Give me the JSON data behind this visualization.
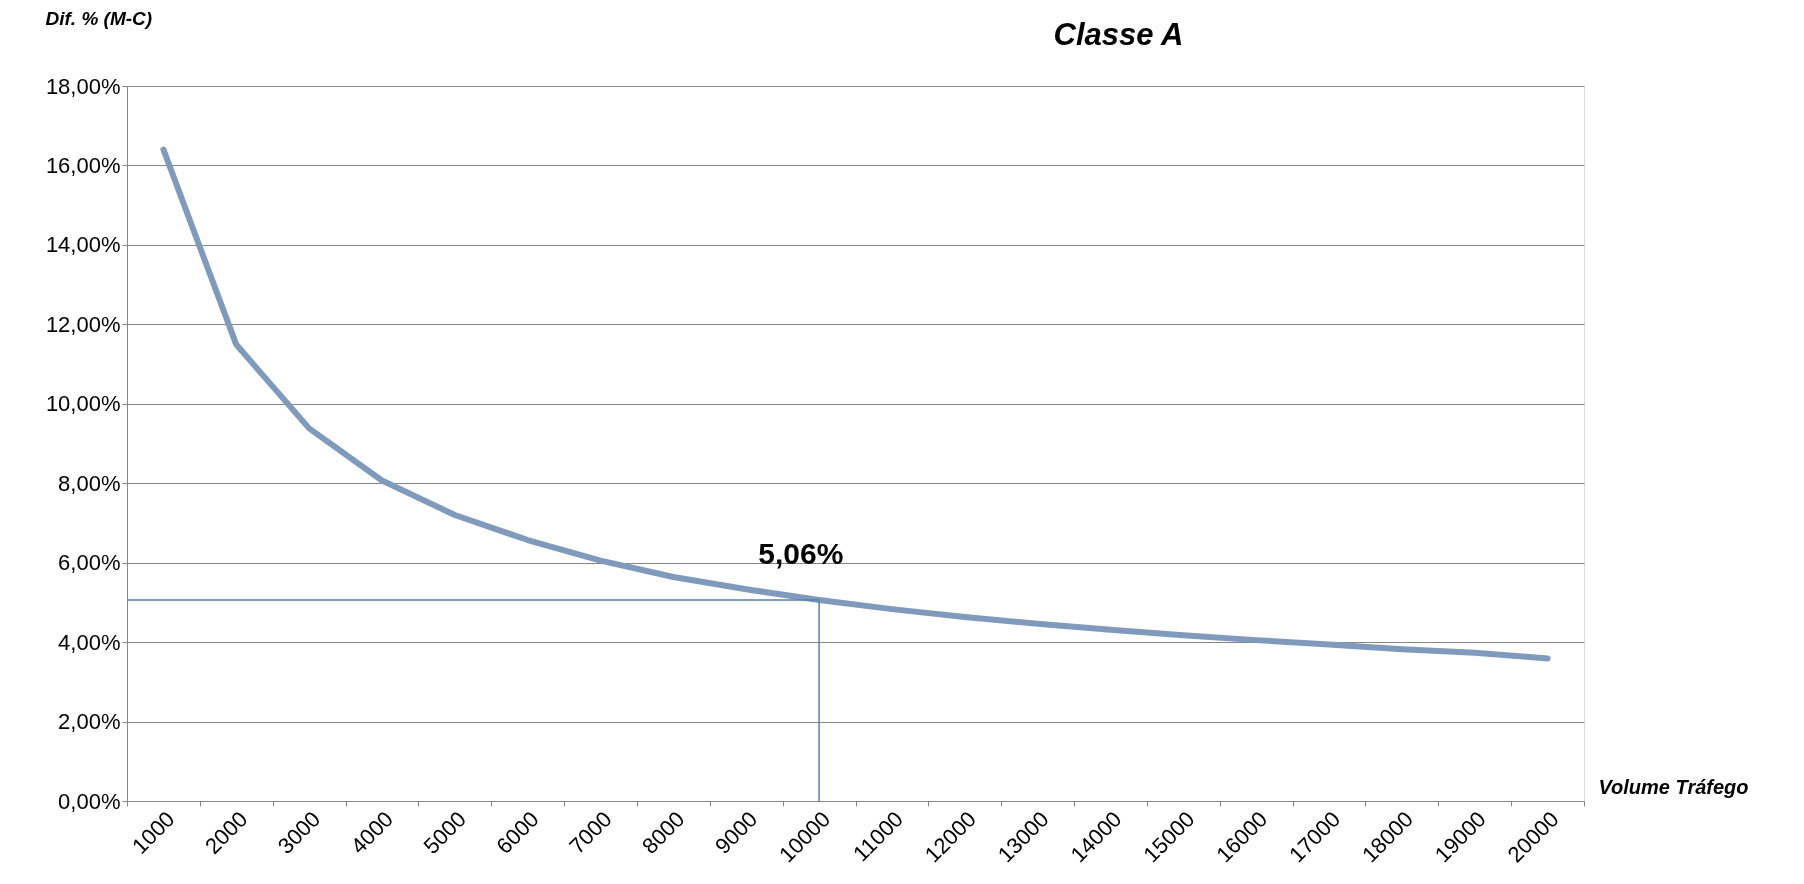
{
  "chart_data": {
    "type": "line",
    "title": "Classe A",
    "xlabel": "Volume Tráfego",
    "ylabel": "Dif. %  (M-C)",
    "categories": [
      "1000",
      "2000",
      "3000",
      "4000",
      "5000",
      "6000",
      "7000",
      "8000",
      "9000",
      "10000",
      "11000",
      "12000",
      "13000",
      "14000",
      "15000",
      "16000",
      "17000",
      "18000",
      "19000",
      "20000"
    ],
    "series": [
      {
        "color": "#7f9aba",
        "values": [
          16.4,
          11.49,
          9.38,
          8.07,
          7.2,
          6.57,
          6.05,
          5.64,
          5.33,
          5.06,
          4.83,
          4.63,
          4.46,
          4.31,
          4.17,
          4.05,
          3.94,
          3.82,
          3.73,
          3.59
        ]
      }
    ],
    "ylim": [
      0,
      18
    ],
    "yticks": [
      {
        "value": 0,
        "label": "0,00%"
      },
      {
        "value": 2,
        "label": "2,00%"
      },
      {
        "value": 4,
        "label": "4,00%"
      },
      {
        "value": 6,
        "label": "6,00%"
      },
      {
        "value": 8,
        "label": "8,00%"
      },
      {
        "value": 10,
        "label": "10,00%"
      },
      {
        "value": 12,
        "label": "12,00%"
      },
      {
        "value": 14,
        "label": "14,00%"
      },
      {
        "value": 16,
        "label": "16,00%"
      },
      {
        "value": 18,
        "label": "18,00%"
      }
    ],
    "ref_lines": [
      {
        "axis": "y",
        "value": 5.06,
        "color": "#5a7fa8"
      },
      {
        "axis": "x",
        "value": "10000",
        "color": "#5a7fa8"
      }
    ],
    "annotations": [
      {
        "text": "5,06%",
        "x": "10000",
        "y": 5.06
      }
    ],
    "grid": "y",
    "marker": "none",
    "line_style": "solid"
  }
}
